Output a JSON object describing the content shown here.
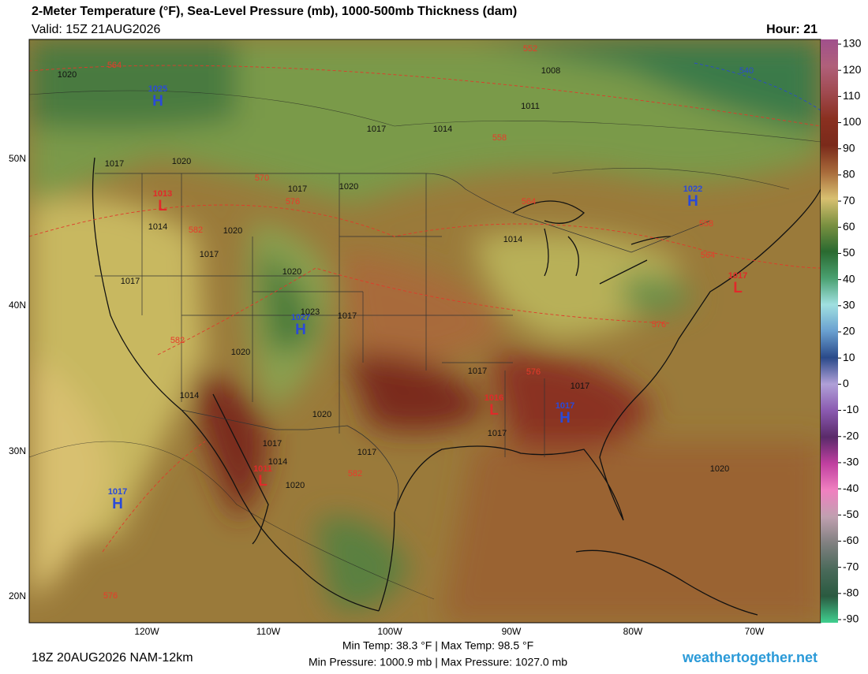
{
  "header": {
    "title": "2-Meter Temperature (°F), Sea-Level Pressure (mb), 1000-500mb Thickness (dam)",
    "valid": "Valid: 15Z 21AUG2026",
    "hour": "Hour: 21"
  },
  "colorbar": {
    "ticks": [
      130,
      120,
      110,
      100,
      90,
      80,
      70,
      60,
      50,
      40,
      30,
      20,
      10,
      0,
      -10,
      -20,
      -30,
      -40,
      -50,
      -60,
      -70,
      -80,
      -90
    ],
    "colors": [
      "#a0508c",
      "#b0607a",
      "#a04a50",
      "#8a3020",
      "#7a2a1a",
      "#a86a3a",
      "#d8c070",
      "#7a9040",
      "#2a6a30",
      "#4aa070",
      "#a0e0e0",
      "#6aa0d0",
      "#2a4a8a",
      "#b0a0d8",
      "#8a5ab0",
      "#5a2a6a",
      "#c040a0",
      "#f080c0",
      "#c0a0b0",
      "#808080",
      "#4a6a5a",
      "#2a5a40",
      "#40d090"
    ]
  },
  "map": {
    "lat_labels": [
      "50N",
      "40N",
      "30N",
      "20N"
    ],
    "lon_labels": [
      "120W",
      "110W",
      "100W",
      "90W",
      "80W",
      "70W"
    ],
    "centers": [
      {
        "letter": "H",
        "value": 1025
      },
      {
        "letter": "L",
        "value": 1013
      },
      {
        "letter": "H",
        "value": 1027
      },
      {
        "letter": "H",
        "value": 1022
      },
      {
        "letter": "L",
        "value": 1011
      },
      {
        "letter": "H",
        "value": 1017
      },
      {
        "letter": "L",
        "value": 1016
      },
      {
        "letter": "H",
        "value": 1017
      },
      {
        "letter": "L",
        "value": 1017
      }
    ],
    "isobar_labels": [
      1020,
      1017,
      1020,
      1014,
      1017,
      1017,
      1020,
      1017,
      1020,
      1023,
      1017,
      1014,
      1011,
      1008,
      1014,
      1017,
      1020,
      1020,
      1017,
      1017,
      1017,
      1014,
      1020,
      1020,
      1017,
      1017,
      1014,
      1020
    ],
    "thickness_labels": [
      564,
      570,
      576,
      582,
      582,
      558,
      552,
      564,
      558,
      564,
      576,
      576,
      582,
      576,
      540
    ]
  },
  "footer": {
    "run": "18Z 20AUG2026 NAM-12km",
    "temps": "Min Temp:  38.3 °F | Max Temp:  98.5 °F",
    "pressures": "Min Pressure: 1000.9 mb | Max Pressure: 1027.0 mb",
    "site": "weathertogether.net"
  }
}
